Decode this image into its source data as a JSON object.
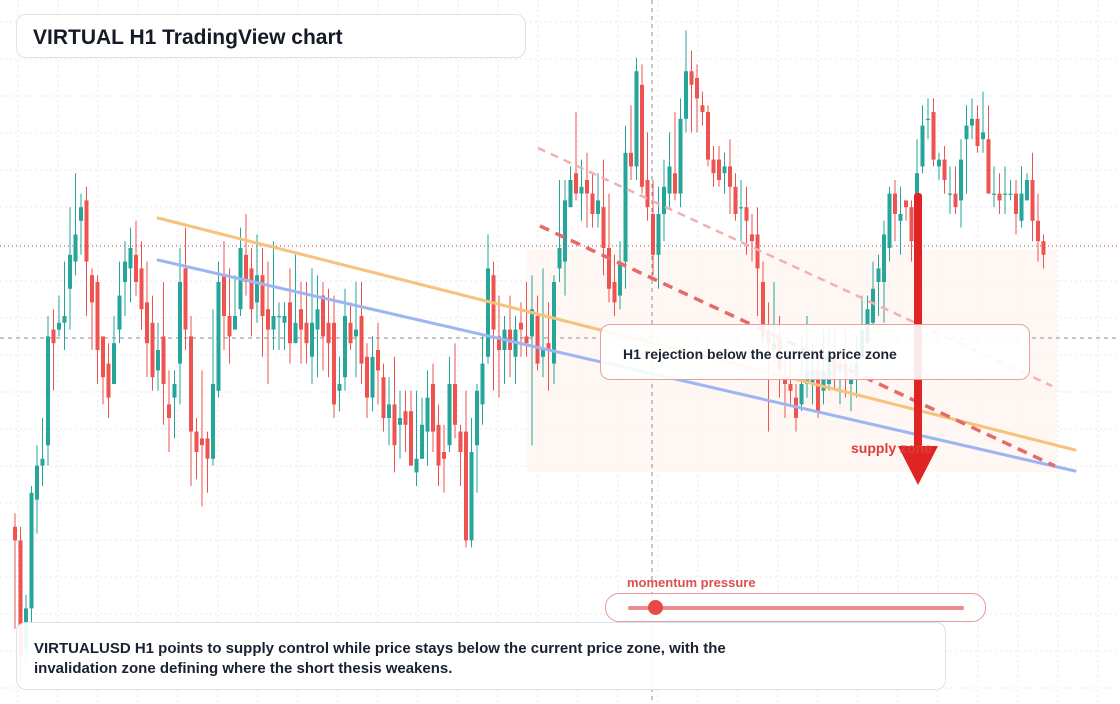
{
  "header": {
    "title": "VIRTUAL H1 TradingView chart"
  },
  "callout": {
    "zone_text": "H1 rejection below the current price zone"
  },
  "supply_label": "supply zone",
  "momentum": {
    "label": "momentum pressure",
    "level": 0.08
  },
  "summary": {
    "text": "VIRTUALUSD H1 points to supply control while price stays below the current price zone, with the invalidation zone defining where the short thesis weakens."
  },
  "colors": {
    "bull": "#26a69a",
    "bear": "#ef5350",
    "trend_orange": "#f7c27a",
    "trend_blue": "#9db5f0",
    "arrow": "#e02424",
    "zone_fill": "#fdf3ee"
  },
  "chart_data": {
    "type": "candlestick",
    "timeframe": "H1",
    "symbol": "VIRTUALUSD",
    "current_price": 0.5,
    "price_range": [
      0,
      1
    ],
    "grid": true,
    "candles": [
      [
        0.24,
        0.22,
        0.26,
        0.09
      ],
      [
        0.22,
        0.05,
        0.24,
        0.01
      ],
      [
        0.06,
        0.12,
        0.14,
        0.04
      ],
      [
        0.12,
        0.29,
        0.3,
        0.1
      ],
      [
        0.28,
        0.33,
        0.36,
        0.23
      ],
      [
        0.33,
        0.34,
        0.4,
        0.3
      ],
      [
        0.36,
        0.52,
        0.55,
        0.33
      ],
      [
        0.53,
        0.51,
        0.56,
        0.44
      ],
      [
        0.53,
        0.54,
        0.58,
        0.52
      ],
      [
        0.54,
        0.55,
        0.63,
        0.5
      ],
      [
        0.59,
        0.64,
        0.71,
        0.53
      ],
      [
        0.63,
        0.67,
        0.76,
        0.61
      ],
      [
        0.69,
        0.71,
        0.73,
        0.64
      ],
      [
        0.72,
        0.63,
        0.74,
        0.55
      ],
      [
        0.61,
        0.57,
        0.62,
        0.5
      ],
      [
        0.6,
        0.5,
        0.61,
        0.45
      ],
      [
        0.52,
        0.46,
        0.5,
        0.42
      ],
      [
        0.48,
        0.43,
        0.51,
        0.4
      ],
      [
        0.45,
        0.51,
        0.55,
        0.45
      ],
      [
        0.53,
        0.58,
        0.63,
        0.51
      ],
      [
        0.6,
        0.63,
        0.66,
        0.55
      ],
      [
        0.62,
        0.65,
        0.68,
        0.57
      ],
      [
        0.64,
        0.6,
        0.69,
        0.58
      ],
      [
        0.62,
        0.56,
        0.66,
        0.53
      ],
      [
        0.57,
        0.51,
        0.63,
        0.46
      ],
      [
        0.54,
        0.46,
        0.58,
        0.44
      ],
      [
        0.47,
        0.5,
        0.54,
        0.44
      ],
      [
        0.52,
        0.45,
        0.6,
        0.39
      ],
      [
        0.42,
        0.4,
        0.47,
        0.35
      ],
      [
        0.43,
        0.45,
        0.47,
        0.37
      ],
      [
        0.48,
        0.6,
        0.65,
        0.42
      ],
      [
        0.62,
        0.53,
        0.68,
        0.5
      ],
      [
        0.52,
        0.38,
        0.55,
        0.3
      ],
      [
        0.38,
        0.35,
        0.4,
        0.31
      ],
      [
        0.37,
        0.36,
        0.47,
        0.27
      ],
      [
        0.37,
        0.34,
        0.38,
        0.29
      ],
      [
        0.34,
        0.45,
        0.56,
        0.33
      ],
      [
        0.44,
        0.6,
        0.63,
        0.43
      ],
      [
        0.61,
        0.55,
        0.66,
        0.5
      ],
      [
        0.55,
        0.52,
        0.62,
        0.48
      ],
      [
        0.53,
        0.55,
        0.61,
        0.54
      ],
      [
        0.56,
        0.65,
        0.68,
        0.55
      ],
      [
        0.64,
        0.6,
        0.7,
        0.58
      ],
      [
        0.62,
        0.56,
        0.65,
        0.52
      ],
      [
        0.57,
        0.61,
        0.67,
        0.54
      ],
      [
        0.61,
        0.55,
        0.65,
        0.49
      ],
      [
        0.56,
        0.53,
        0.63,
        0.45
      ],
      [
        0.53,
        0.55,
        0.66,
        0.5
      ],
      [
        0.55,
        0.55,
        0.57,
        0.5
      ],
      [
        0.54,
        0.55,
        0.57,
        0.5
      ],
      [
        0.57,
        0.51,
        0.62,
        0.48
      ],
      [
        0.51,
        0.54,
        0.64,
        0.52
      ],
      [
        0.56,
        0.53,
        0.6,
        0.48
      ],
      [
        0.54,
        0.51,
        0.6,
        0.48
      ],
      [
        0.49,
        0.54,
        0.62,
        0.45
      ],
      [
        0.53,
        0.56,
        0.61,
        0.46
      ],
      [
        0.58,
        0.52,
        0.6,
        0.47
      ],
      [
        0.54,
        0.51,
        0.59,
        0.46
      ],
      [
        0.54,
        0.42,
        0.58,
        0.4
      ],
      [
        0.44,
        0.45,
        0.49,
        0.41
      ],
      [
        0.46,
        0.55,
        0.59,
        0.44
      ],
      [
        0.54,
        0.51,
        0.57,
        0.5
      ],
      [
        0.52,
        0.53,
        0.6,
        0.46
      ],
      [
        0.55,
        0.48,
        0.6,
        0.45
      ],
      [
        0.49,
        0.43,
        0.51,
        0.4
      ],
      [
        0.43,
        0.49,
        0.52,
        0.41
      ],
      [
        0.5,
        0.47,
        0.54,
        0.42
      ],
      [
        0.46,
        0.4,
        0.48,
        0.38
      ],
      [
        0.4,
        0.42,
        0.46,
        0.36
      ],
      [
        0.42,
        0.36,
        0.49,
        0.32
      ],
      [
        0.39,
        0.4,
        0.44,
        0.34
      ],
      [
        0.41,
        0.39,
        0.44,
        0.35
      ],
      [
        0.41,
        0.33,
        0.44,
        0.33
      ],
      [
        0.32,
        0.34,
        0.44,
        0.3
      ],
      [
        0.34,
        0.39,
        0.43,
        0.34
      ],
      [
        0.38,
        0.43,
        0.47,
        0.33
      ],
      [
        0.45,
        0.38,
        0.48,
        0.35
      ],
      [
        0.39,
        0.33,
        0.42,
        0.3
      ],
      [
        0.35,
        0.34,
        0.39,
        0.29
      ],
      [
        0.36,
        0.45,
        0.49,
        0.35
      ],
      [
        0.45,
        0.39,
        0.51,
        0.37
      ],
      [
        0.38,
        0.35,
        0.39,
        0.3
      ],
      [
        0.38,
        0.22,
        0.44,
        0.21
      ],
      [
        0.22,
        0.35,
        0.4,
        0.21
      ],
      [
        0.36,
        0.44,
        0.45,
        0.29
      ],
      [
        0.42,
        0.48,
        0.52,
        0.39
      ],
      [
        0.49,
        0.62,
        0.67,
        0.48
      ],
      [
        0.61,
        0.53,
        0.63,
        0.44
      ],
      [
        0.52,
        0.5,
        0.58,
        0.43
      ],
      [
        0.5,
        0.53,
        0.55,
        0.45
      ],
      [
        0.53,
        0.5,
        0.58,
        0.46
      ],
      [
        0.49,
        0.53,
        0.55,
        0.45
      ],
      [
        0.54,
        0.53,
        0.57,
        0.49
      ],
      [
        0.52,
        0.51,
        0.6,
        0.49
      ],
      [
        0.52,
        0.56,
        0.61,
        0.36
      ],
      [
        0.55,
        0.48,
        0.58,
        0.47
      ],
      [
        0.49,
        0.5,
        0.62,
        0.46
      ],
      [
        0.51,
        0.5,
        0.57,
        0.44
      ],
      [
        0.48,
        0.6,
        0.61,
        0.45
      ],
      [
        0.62,
        0.65,
        0.75,
        0.6
      ],
      [
        0.63,
        0.72,
        0.75,
        0.58
      ],
      [
        0.71,
        0.75,
        0.77,
        0.71
      ],
      [
        0.76,
        0.73,
        0.85,
        0.72
      ],
      [
        0.73,
        0.74,
        0.78,
        0.69
      ],
      [
        0.75,
        0.73,
        0.79,
        0.68
      ],
      [
        0.73,
        0.7,
        0.76,
        0.68
      ],
      [
        0.7,
        0.72,
        0.76,
        0.68
      ],
      [
        0.71,
        0.65,
        0.78,
        0.61
      ],
      [
        0.65,
        0.59,
        0.73,
        0.57
      ],
      [
        0.6,
        0.57,
        0.64,
        0.55
      ],
      [
        0.58,
        0.63,
        0.66,
        0.56
      ],
      [
        0.63,
        0.79,
        0.83,
        0.59
      ],
      [
        0.79,
        0.77,
        0.86,
        0.75
      ],
      [
        0.77,
        0.91,
        0.93,
        0.75
      ],
      [
        0.89,
        0.74,
        0.92,
        0.73
      ],
      [
        0.75,
        0.71,
        0.82,
        0.69
      ],
      [
        0.7,
        0.64,
        0.75,
        0.61
      ],
      [
        0.64,
        0.7,
        0.74,
        0.59
      ],
      [
        0.7,
        0.74,
        0.78,
        0.66
      ],
      [
        0.73,
        0.77,
        0.82,
        0.71
      ],
      [
        0.76,
        0.73,
        0.85,
        0.72
      ],
      [
        0.73,
        0.84,
        0.87,
        0.71
      ],
      [
        0.84,
        0.91,
        0.97,
        0.82
      ],
      [
        0.91,
        0.89,
        0.94,
        0.82
      ],
      [
        0.9,
        0.87,
        0.92,
        0.82
      ],
      [
        0.86,
        0.85,
        0.88,
        0.83
      ],
      [
        0.85,
        0.78,
        0.86,
        0.77
      ],
      [
        0.78,
        0.76,
        0.8,
        0.74
      ],
      [
        0.78,
        0.75,
        0.8,
        0.74
      ],
      [
        0.76,
        0.77,
        0.79,
        0.73
      ],
      [
        0.77,
        0.74,
        0.81,
        0.7
      ],
      [
        0.74,
        0.7,
        0.76,
        0.69
      ],
      [
        0.71,
        0.71,
        0.75,
        0.66
      ],
      [
        0.71,
        0.69,
        0.74,
        0.64
      ],
      [
        0.67,
        0.66,
        0.7,
        0.63
      ],
      [
        0.67,
        0.62,
        0.71,
        0.55
      ],
      [
        0.6,
        0.52,
        0.63,
        0.51
      ],
      [
        0.53,
        0.51,
        0.57,
        0.38
      ],
      [
        0.5,
        0.51,
        0.6,
        0.48
      ],
      [
        0.52,
        0.47,
        0.55,
        0.43
      ],
      [
        0.46,
        0.45,
        0.5,
        0.4
      ],
      [
        0.45,
        0.44,
        0.49,
        0.42
      ],
      [
        0.43,
        0.4,
        0.45,
        0.38
      ],
      [
        0.42,
        0.45,
        0.52,
        0.41
      ],
      [
        0.45,
        0.47,
        0.55,
        0.43
      ],
      [
        0.45,
        0.47,
        0.51,
        0.42
      ],
      [
        0.47,
        0.41,
        0.49,
        0.4
      ],
      [
        0.44,
        0.47,
        0.53,
        0.42
      ],
      [
        0.45,
        0.49,
        0.53,
        0.44
      ],
      [
        0.49,
        0.46,
        0.53,
        0.44
      ],
      [
        0.47,
        0.48,
        0.5,
        0.42
      ],
      [
        0.48,
        0.46,
        0.53,
        0.43
      ],
      [
        0.45,
        0.46,
        0.48,
        0.41
      ],
      [
        0.46,
        0.48,
        0.52,
        0.43
      ],
      [
        0.49,
        0.53,
        0.58,
        0.49
      ],
      [
        0.51,
        0.56,
        0.58,
        0.54
      ],
      [
        0.54,
        0.59,
        0.63,
        0.53
      ],
      [
        0.6,
        0.62,
        0.64,
        0.55
      ],
      [
        0.6,
        0.67,
        0.69,
        0.54
      ],
      [
        0.65,
        0.73,
        0.74,
        0.63
      ],
      [
        0.73,
        0.7,
        0.75,
        0.66
      ],
      [
        0.69,
        0.7,
        0.74,
        0.64
      ],
      [
        0.72,
        0.71,
        0.72,
        0.69
      ],
      [
        0.71,
        0.66,
        0.72,
        0.63
      ],
      [
        0.67,
        0.76,
        0.81,
        0.66
      ],
      [
        0.77,
        0.83,
        0.86,
        0.76
      ],
      [
        0.84,
        0.84,
        0.87,
        0.81
      ],
      [
        0.85,
        0.78,
        0.87,
        0.77
      ],
      [
        0.77,
        0.78,
        0.79,
        0.75
      ],
      [
        0.78,
        0.75,
        0.8,
        0.73
      ],
      [
        0.73,
        0.73,
        0.77,
        0.7
      ],
      [
        0.73,
        0.71,
        0.77,
        0.7
      ],
      [
        0.72,
        0.78,
        0.81,
        0.68
      ],
      [
        0.81,
        0.83,
        0.86,
        0.73
      ],
      [
        0.83,
        0.84,
        0.87,
        0.81
      ],
      [
        0.84,
        0.8,
        0.86,
        0.79
      ],
      [
        0.81,
        0.82,
        0.88,
        0.79
      ],
      [
        0.81,
        0.73,
        0.86,
        0.73
      ],
      [
        0.73,
        0.73,
        0.77,
        0.71
      ],
      [
        0.73,
        0.72,
        0.76,
        0.7
      ],
      [
        0.73,
        0.73,
        0.77,
        0.7
      ],
      [
        0.73,
        0.73,
        0.75,
        0.72
      ],
      [
        0.73,
        0.7,
        0.75,
        0.67
      ],
      [
        0.69,
        0.73,
        0.77,
        0.68
      ],
      [
        0.72,
        0.75,
        0.76,
        0.73
      ],
      [
        0.75,
        0.69,
        0.79,
        0.66
      ],
      [
        0.69,
        0.66,
        0.73,
        0.63
      ],
      [
        0.66,
        0.64,
        0.67,
        0.62
      ]
    ]
  }
}
